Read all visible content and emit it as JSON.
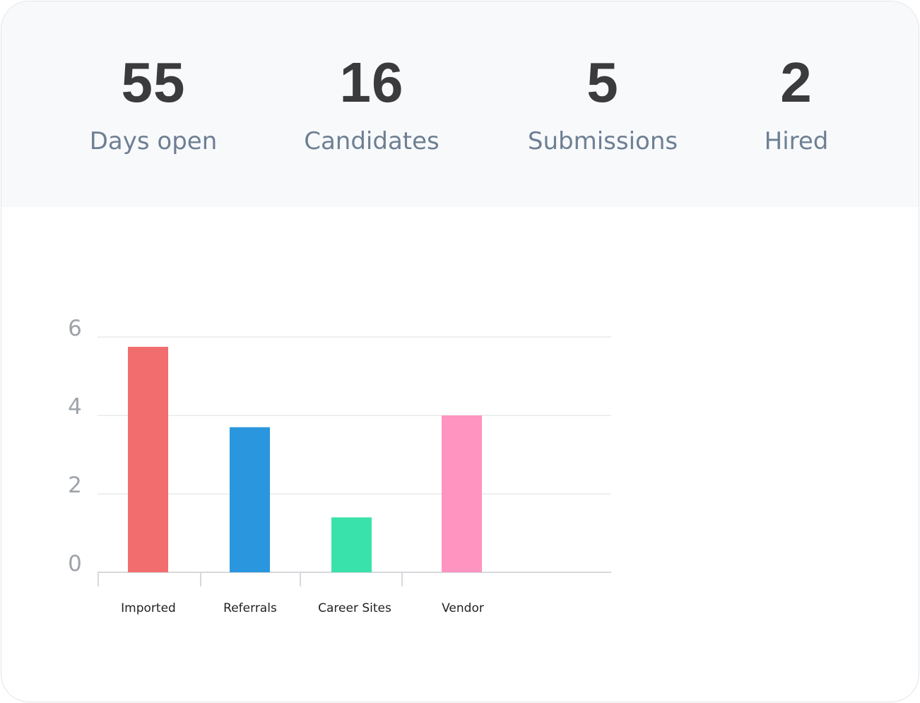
{
  "stats": [
    {
      "value": "55",
      "label": "Days open"
    },
    {
      "value": "16",
      "label": "Candidates"
    },
    {
      "value": "5",
      "label": "Submissions"
    },
    {
      "value": "2",
      "label": "Hired"
    }
  ],
  "chart_data": {
    "type": "bar",
    "categories": [
      "Imported",
      "Referrals",
      "Career Sites",
      "Vendor"
    ],
    "values": [
      5.75,
      3.7,
      1.4,
      4.0
    ],
    "colors": [
      "#f26d6d",
      "#2a96de",
      "#3ae2ab",
      "#ff94c1"
    ],
    "ylim": [
      0,
      6
    ],
    "yticks": [
      0,
      2,
      4,
      6
    ],
    "ytick_labels": [
      "0",
      "2",
      "4",
      "6"
    ],
    "grid": true,
    "title": "",
    "xlabel": "",
    "ylabel": ""
  }
}
